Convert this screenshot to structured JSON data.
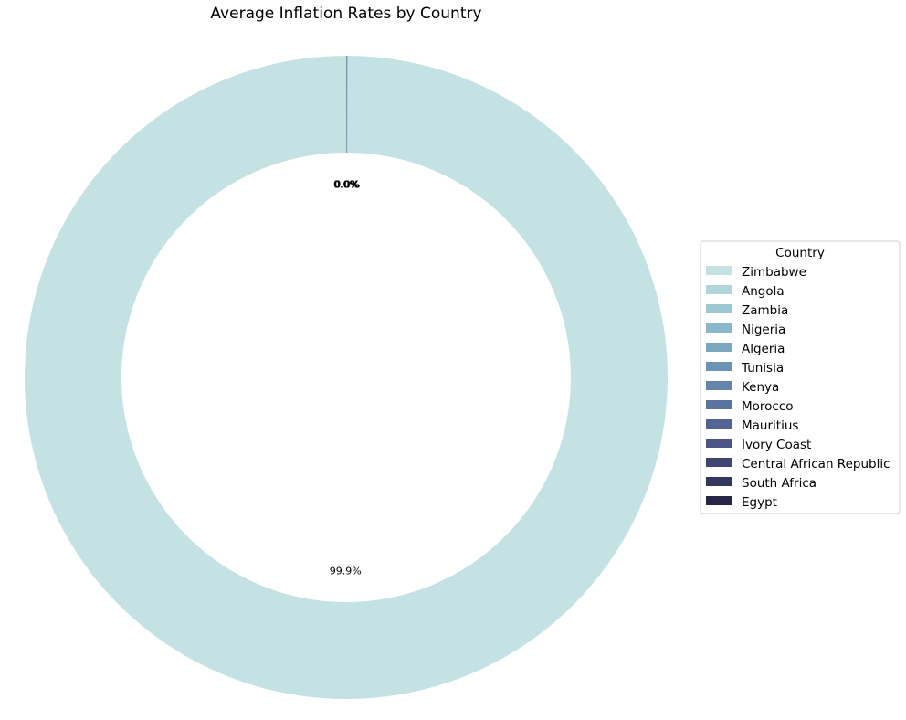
{
  "chart_data": {
    "type": "pie",
    "variant": "donut",
    "title": "Average Inflation Rates by Country",
    "legend_title": "Country",
    "legend_position": "right",
    "start_angle_deg": 90,
    "direction": "counterclockwise",
    "categories": [
      "Zimbabwe",
      "Angola",
      "Zambia",
      "Nigeria",
      "Algeria",
      "Tunisia",
      "Kenya",
      "Morocco",
      "Mauritius",
      "Ivory Coast",
      "Central African Republic",
      "South Africa",
      "Egypt"
    ],
    "values": [
      99.9,
      0.02,
      0.015,
      0.015,
      0.01,
      0.008,
      0.008,
      0.007,
      0.006,
      0.006,
      0.005,
      0.005,
      0.005
    ],
    "labels": [
      "99.9%",
      "0.0%",
      "0.0%",
      "0.0%",
      "0.0%",
      "0.0%",
      "0.0%",
      "0.0%",
      "0.0%",
      "0.0%",
      "0.0%",
      "0.0%",
      "0.0%"
    ],
    "colors": [
      "#c4e2e4",
      "#b0d5da",
      "#9bc8d1",
      "#88b8c9",
      "#7aa6c0",
      "#6c93b5",
      "#6484ab",
      "#5a74a0",
      "#526393",
      "#4b5484",
      "#404672",
      "#33375d",
      "#272745"
    ]
  }
}
